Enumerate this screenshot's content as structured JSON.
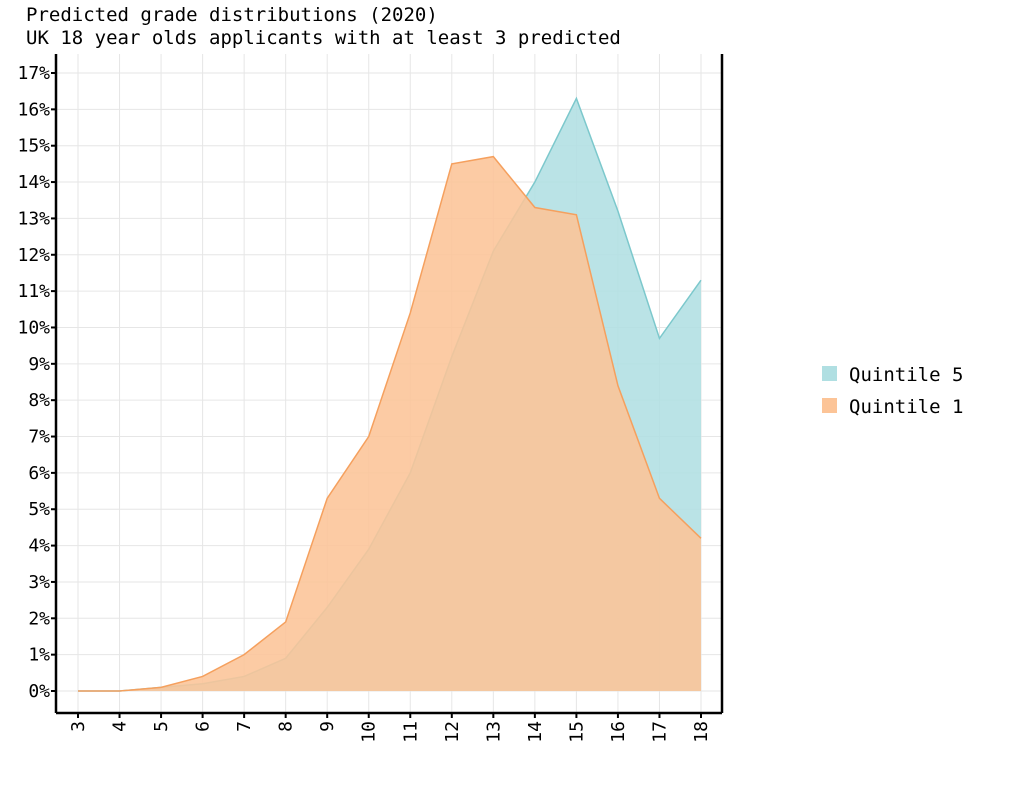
{
  "chart_data": {
    "type": "area",
    "title": "Predicted grade distributions (2020)",
    "subtitle": "UK 18 year olds applicants with at least 3 predicted",
    "xlabel": "",
    "ylabel": "",
    "x": [
      3,
      4,
      5,
      6,
      7,
      8,
      9,
      10,
      11,
      12,
      13,
      14,
      15,
      16,
      17,
      18
    ],
    "xlim": [
      3,
      18
    ],
    "ylim": [
      0,
      17
    ],
    "y_ticks": [
      0,
      1,
      2,
      3,
      4,
      5,
      6,
      7,
      8,
      9,
      10,
      11,
      12,
      13,
      14,
      15,
      16,
      17
    ],
    "y_tick_suffix": "%",
    "grid": true,
    "legend_position": "right",
    "series": [
      {
        "name": "Quintile 5",
        "color": "#b0dfe2",
        "line_color": "#7cc8cc",
        "values": [
          0.0,
          0.0,
          0.1,
          0.2,
          0.4,
          0.9,
          2.3,
          3.9,
          6.0,
          9.2,
          12.1,
          14.0,
          16.3,
          13.2,
          9.7,
          11.3
        ]
      },
      {
        "name": "Quintile 1",
        "color": "#fcc497",
        "line_color": "#f5a05e",
        "values": [
          0.0,
          0.0,
          0.1,
          0.4,
          1.0,
          1.9,
          5.3,
          7.0,
          10.4,
          14.5,
          14.7,
          13.3,
          13.1,
          8.4,
          5.3,
          4.2
        ]
      }
    ]
  }
}
